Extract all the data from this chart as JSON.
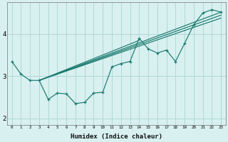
{
  "xlabel": "Humidex (Indice chaleur)",
  "bg_color": "#d8f0f0",
  "grid_color": "#b0d8d8",
  "line_color": "#1a7a6e",
  "xlim": [
    -0.5,
    23.5
  ],
  "ylim": [
    1.85,
    4.75
  ],
  "yticks": [
    2,
    3,
    4
  ],
  "xticks": [
    0,
    1,
    2,
    3,
    4,
    5,
    6,
    7,
    8,
    9,
    10,
    11,
    12,
    13,
    14,
    15,
    16,
    17,
    18,
    19,
    20,
    21,
    22,
    23
  ],
  "jagged_x": [
    0,
    1,
    2,
    3,
    4,
    5,
    6,
    7,
    8,
    9,
    10,
    11,
    12,
    13,
    14,
    15,
    16,
    17,
    18,
    19,
    20,
    21,
    22,
    23
  ],
  "jagged_y": [
    3.35,
    3.05,
    2.9,
    2.9,
    2.45,
    2.6,
    2.58,
    2.35,
    2.38,
    2.6,
    2.62,
    3.22,
    3.3,
    3.35,
    3.9,
    3.65,
    3.55,
    3.62,
    3.35,
    3.78,
    4.22,
    4.5,
    4.58,
    4.52
  ],
  "smooth_lines": [
    {
      "x": [
        3,
        23
      ],
      "y": [
        2.9,
        4.52
      ]
    },
    {
      "x": [
        3,
        23
      ],
      "y": [
        2.9,
        4.45
      ]
    },
    {
      "x": [
        3,
        23
      ],
      "y": [
        2.9,
        4.38
      ]
    },
    {
      "x": [
        3,
        14
      ],
      "y": [
        2.9,
        3.85
      ]
    }
  ]
}
